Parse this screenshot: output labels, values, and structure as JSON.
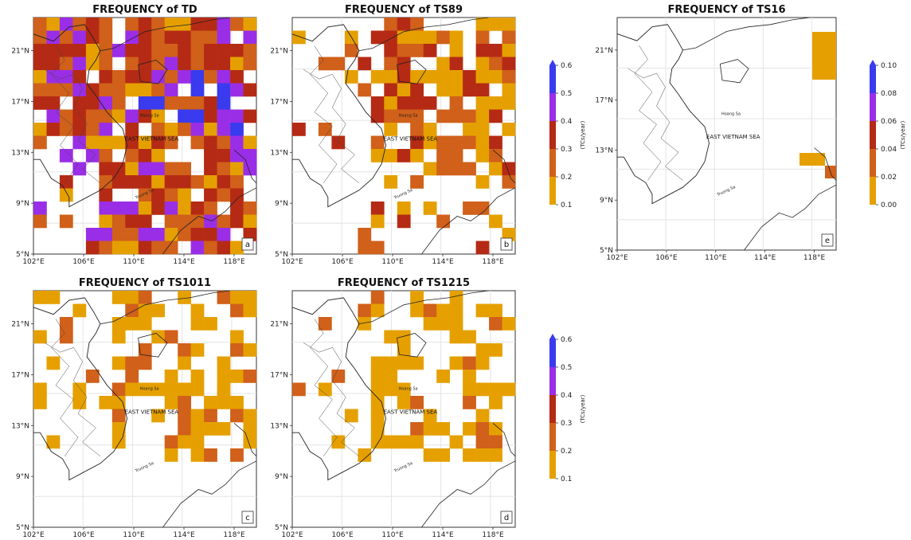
{
  "panels": [
    {
      "id": "a",
      "title": "FREQUENCY of TD",
      "letter": "a",
      "sea_label": "EAST VIETNAM SEA",
      "hoang_sa": "Hoang Sa",
      "truong_sa": "Truong Sa"
    },
    {
      "id": "b",
      "title": "FREQUENCY of TS89",
      "letter": "b",
      "sea_label": "EAST VIETNAM SEA",
      "hoang_sa": "Hoang Sa",
      "truong_sa": "Truong Sa"
    },
    {
      "id": "e",
      "title": "FREQUENCY of TS16",
      "letter": "e",
      "sea_label": "EAST VIETNAM SEA",
      "hoang_sa": "Hoang Sa",
      "truong_sa": "Truong Sa"
    },
    {
      "id": "c",
      "title": "FREQUENCY of TS1011",
      "letter": "c",
      "sea_label": "EAST VIETNAM SEA",
      "hoang_sa": "Hoang Sa",
      "truong_sa": "Truong Sa"
    },
    {
      "id": "d",
      "title": "FREQUENCY of TS1215",
      "letter": "d",
      "sea_label": "EAST VIETNAM SEA",
      "hoang_sa": "Hoang Sa",
      "truong_sa": "Truong Sa"
    }
  ],
  "axes": {
    "lat_ticks": [
      "21°N",
      "17°N",
      "13°N",
      "9°N",
      "5°N"
    ],
    "lon_ticks": [
      "102°E",
      "106°E",
      "110°E",
      "114°E",
      "118°E"
    ]
  },
  "colorbars": [
    {
      "id": "cb1",
      "label": "(TCs/year)",
      "ticks": [
        "0.6",
        "0.5",
        "0.4",
        "0.3",
        "0.2",
        "0.1"
      ]
    },
    {
      "id": "cb2",
      "label": "(TCs/year)",
      "ticks": [
        "0.10",
        "0.08",
        "0.06",
        "0.04",
        "0.02",
        "0.00"
      ]
    },
    {
      "id": "cb3",
      "label": "(TCs/year)",
      "ticks": [
        "0.6",
        "0.5",
        "0.4",
        "0.3",
        "0.2",
        "0.1"
      ]
    }
  ],
  "colors": {
    "low": "#e5a000",
    "mid": "#d0601a",
    "high": "#b52a14",
    "purple": "#9a2ee6",
    "blue": "#3a3aee",
    "grid": "#e4e4e4"
  }
}
